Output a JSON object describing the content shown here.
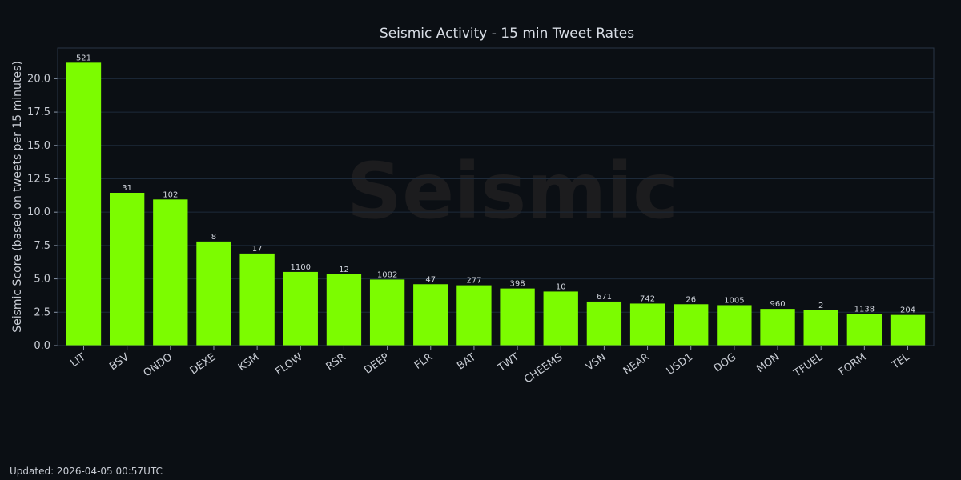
{
  "chart_data": {
    "type": "bar",
    "title": "Seismic Activity - 15 min Tweet Rates",
    "xlabel": "",
    "ylabel": "Seismic Score (based on tweets per 15 minutes)",
    "ylim": [
      0,
      22.3
    ],
    "yticks": [
      "0.0",
      "2.5",
      "5.0",
      "7.5",
      "10.0",
      "12.5",
      "15.0",
      "17.5",
      "20.0"
    ],
    "grid": true,
    "categories": [
      "LIT",
      "BSV",
      "ONDO",
      "DEXE",
      "KSM",
      "FLOW",
      "RSR",
      "DEEP",
      "FLR",
      "BAT",
      "TWT",
      "CHEEMS",
      "VSN",
      "NEAR",
      "USD1",
      "DOG",
      "MON",
      "TFUEL",
      "FORM",
      "TEL"
    ],
    "values": [
      21.2,
      11.45,
      10.95,
      7.8,
      6.9,
      5.52,
      5.35,
      4.95,
      4.6,
      4.52,
      4.28,
      4.05,
      3.3,
      3.15,
      3.1,
      3.03,
      2.75,
      2.65,
      2.38,
      2.3
    ],
    "bar_labels": [
      "521",
      "31",
      "102",
      "8",
      "17",
      "1100",
      "12",
      "1082",
      "47",
      "277",
      "398",
      "10",
      "671",
      "742",
      "26",
      "1005",
      "960",
      "2",
      "1138",
      "204"
    ],
    "bar_color": "#7cfc00",
    "watermark": "Seismic"
  },
  "footer": {
    "updated": "Updated: 2026-04-05 00:57UTC"
  }
}
